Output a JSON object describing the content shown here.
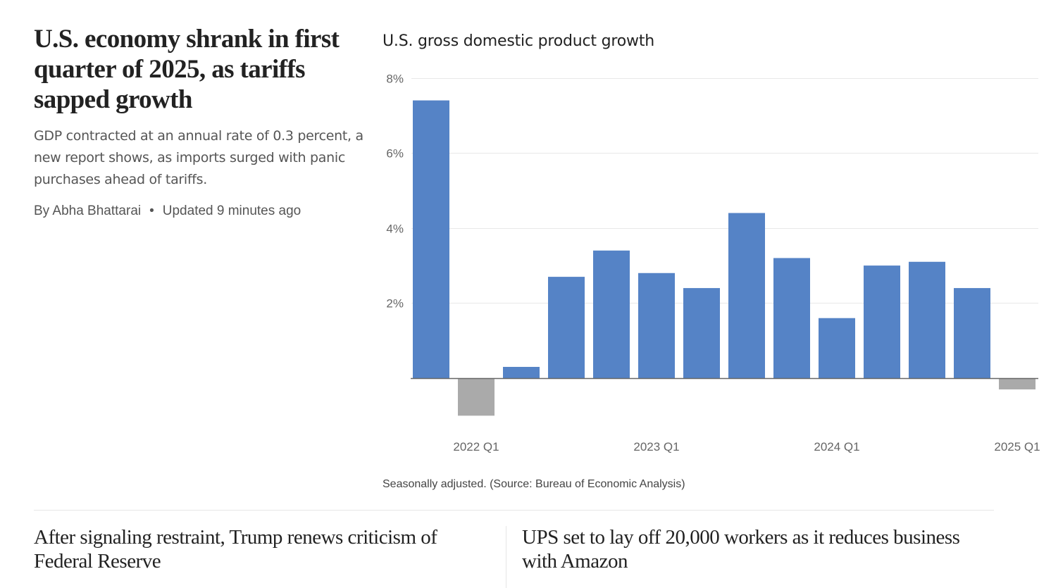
{
  "article": {
    "headline": "U.S. economy shrank in first quarter of 2025, as tariffs sapped growth",
    "dek": "GDP contracted at an annual rate of 0.3 percent, a new report shows, as imports surged with panic purchases ahead of tariffs.",
    "byline": "By Abha Bhattarai",
    "separator": "•",
    "updated": "Updated 9 minutes ago"
  },
  "chart_data": {
    "type": "bar",
    "title": "U.S. gross domestic product growth",
    "xlabel": "",
    "ylabel": "",
    "categories": [
      "2021 Q4",
      "2022 Q1",
      "2022 Q2",
      "2022 Q3",
      "2022 Q4",
      "2023 Q1",
      "2023 Q2",
      "2023 Q3",
      "2023 Q4",
      "2024 Q1",
      "2024 Q2",
      "2024 Q3",
      "2024 Q4",
      "2025 Q1"
    ],
    "values": [
      7.4,
      -1.0,
      0.3,
      2.7,
      3.4,
      2.8,
      2.4,
      4.4,
      3.2,
      1.6,
      3.0,
      3.1,
      2.4,
      -0.3
    ],
    "unit": "%",
    "ylim": [
      -1.5,
      8
    ],
    "yticks": [
      2,
      4,
      6,
      8
    ],
    "ytick_labels": [
      "2%",
      "4%",
      "6%",
      "8%"
    ],
    "xtick_labels": [
      {
        "category": "2022 Q1",
        "label": "2022 Q1"
      },
      {
        "category": "2023 Q1",
        "label": "2023 Q1"
      },
      {
        "category": "2024 Q1",
        "label": "2024 Q1"
      },
      {
        "category": "2025 Q1",
        "label": "2025 Q1"
      }
    ],
    "grid": true,
    "colors": {
      "positive": "#5583c6",
      "negative": "#aaaaaa",
      "grid": "#e8e8e8",
      "axis": "#666666"
    },
    "source_note": "Seasonally adjusted. (Source: Bureau of Economic Analysis)"
  },
  "related": [
    {
      "headline": "After signaling restraint, Trump renews criticism of Federal Reserve"
    },
    {
      "headline": "UPS set to lay off 20,000 workers as it reduces business with Amazon"
    }
  ]
}
